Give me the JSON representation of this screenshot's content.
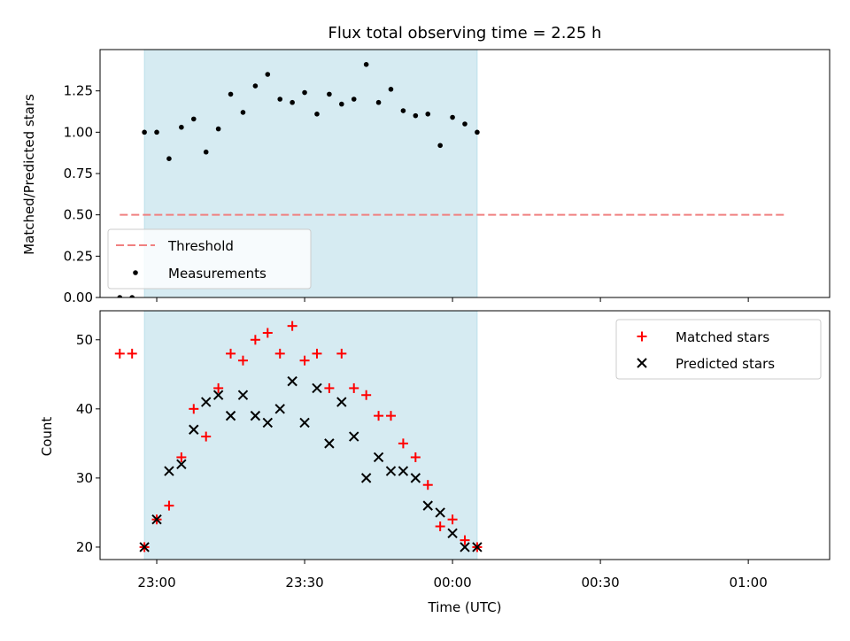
{
  "chart_data": {
    "type": "scatter",
    "title": "Flux total observing time = 2.25 h",
    "xlabel": "Time (UTC)",
    "x_tick_labels": [
      "23:00",
      "23:30",
      "00:00",
      "00:30",
      "01:00"
    ],
    "x_tick_minutes": [
      0,
      30,
      60,
      90,
      120
    ],
    "xlim_minutes": [
      -11.5,
      136.5
    ],
    "shaded_span_minutes": [
      -2.5,
      65
    ],
    "colors": {
      "shade": "#add8e6",
      "threshold": "#f08080",
      "matched": "#ff0000",
      "predicted": "#000000",
      "measurements": "#000000"
    },
    "top_panel": {
      "ylabel": "Matched/Predicted stars",
      "ylim": [
        0,
        1.5
      ],
      "y_ticks": [
        0.0,
        0.25,
        0.5,
        0.75,
        1.0,
        1.25
      ],
      "y_tick_labels": [
        "0.00",
        "0.25",
        "0.50",
        "0.75",
        "1.00",
        "1.25"
      ],
      "threshold": {
        "name": "Threshold",
        "y": 0.5,
        "x_range_minutes": [
          -7.5,
          127.5
        ]
      },
      "series": [
        {
          "name": "Measurements",
          "marker": "dot",
          "x_minutes": [
            -7.5,
            -5,
            -2.5,
            0,
            2.5,
            5,
            7.5,
            10,
            12.5,
            15,
            17.5,
            20,
            22.5,
            25,
            27.5,
            30,
            32.5,
            35,
            37.5,
            40,
            42.5,
            45,
            47.5,
            50,
            52.5,
            55,
            57.5,
            60,
            62.5,
            65
          ],
          "values": [
            0.0,
            0.0,
            1.0,
            1.0,
            0.84,
            1.03,
            1.08,
            0.88,
            1.02,
            1.23,
            1.12,
            1.28,
            1.35,
            1.2,
            1.18,
            1.24,
            1.11,
            1.23,
            1.17,
            1.2,
            1.41,
            1.18,
            1.26,
            1.13,
            1.1,
            1.11,
            0.92,
            1.09,
            1.05,
            1.0
          ]
        }
      ],
      "legend_position": "lower-left"
    },
    "bottom_panel": {
      "ylabel": "Count",
      "ylim": [
        18.2,
        54.2
      ],
      "y_ticks": [
        20,
        30,
        40,
        50
      ],
      "y_tick_labels": [
        "20",
        "30",
        "40",
        "50"
      ],
      "series": [
        {
          "name": "Matched stars",
          "marker": "plus",
          "x_minutes": [
            -7.5,
            -5,
            -2.5,
            0,
            2.5,
            5,
            7.5,
            10,
            12.5,
            15,
            17.5,
            20,
            22.5,
            25,
            27.5,
            30,
            32.5,
            35,
            37.5,
            40,
            42.5,
            45,
            47.5,
            50,
            52.5,
            55,
            57.5,
            60,
            62.5,
            65
          ],
          "values": [
            48,
            48,
            20,
            24,
            26,
            33,
            40,
            36,
            43,
            48,
            47,
            50,
            51,
            48,
            52,
            47,
            48,
            43,
            48,
            43,
            42,
            39,
            39,
            35,
            33,
            29,
            23,
            24,
            21,
            20
          ]
        },
        {
          "name": "Predicted stars",
          "marker": "x",
          "x_minutes": [
            -2.5,
            0,
            2.5,
            5,
            7.5,
            10,
            12.5,
            15,
            17.5,
            20,
            22.5,
            25,
            27.5,
            30,
            32.5,
            35,
            37.5,
            40,
            42.5,
            45,
            47.5,
            50,
            52.5,
            55,
            57.5,
            60,
            62.5,
            65
          ],
          "values": [
            20,
            24,
            31,
            32,
            37,
            41,
            42,
            39,
            42,
            39,
            38,
            40,
            44,
            38,
            43,
            35,
            41,
            36,
            30,
            33,
            31,
            31,
            30,
            26,
            25,
            22,
            20,
            20
          ]
        }
      ],
      "legend_position": "upper-right"
    }
  }
}
